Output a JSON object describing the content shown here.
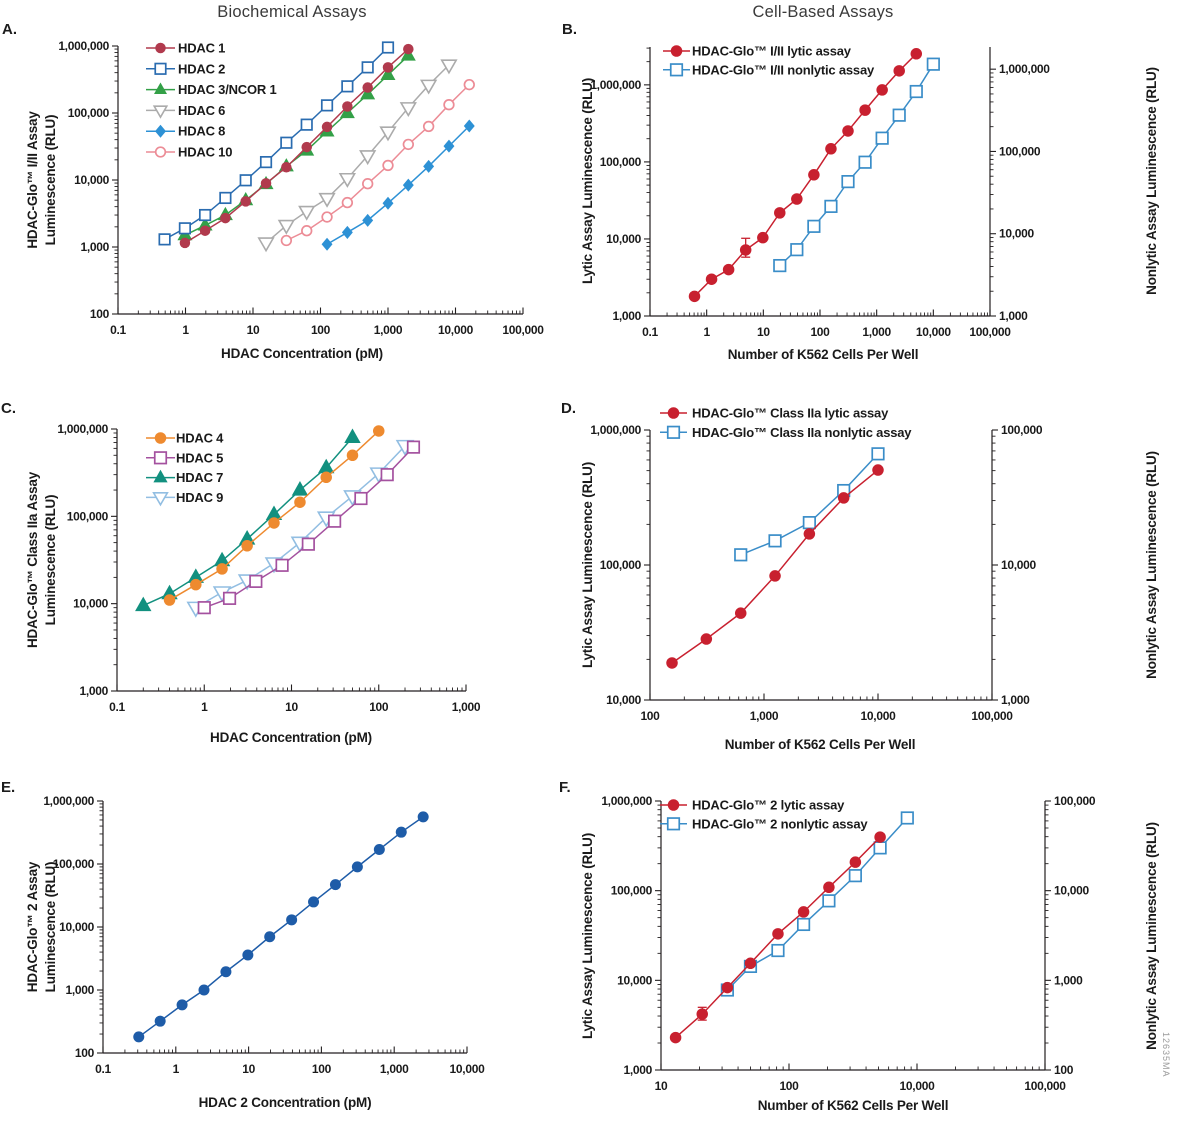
{
  "page": {
    "column_titles": [
      {
        "text": "Biochemical Assays"
      },
      {
        "text": "Cell-Based Assays"
      }
    ],
    "watermark": "12635MA"
  },
  "chart_data": [
    {
      "id": "A",
      "panel_label": "A.",
      "type": "line",
      "x_axis": {
        "scale": "log",
        "min": 0.1,
        "tick_labels": [
          "0.1",
          "1",
          "10",
          "100",
          "1,000",
          "10,000",
          "100,000"
        ],
        "title": "HDAC Concentration (pM)"
      },
      "y_left": {
        "scale": "log",
        "min": 100,
        "tick_labels": [
          "100",
          "1,000",
          "10,000",
          "100,000",
          "1,000,000"
        ],
        "axis_max": 1000000,
        "title": "HDAC-Glo™ I/II Assay\nLuminescence (RLU)"
      },
      "series": [
        {
          "name": "HDAC 1",
          "marker": "circle-filled",
          "color": "#b13a4d",
          "axis": "left",
          "x": [
            0.98,
            1.95,
            3.9,
            7.8,
            15.6,
            31.2,
            62.5,
            125,
            250,
            500,
            1000,
            2000
          ],
          "y": [
            1150,
            1750,
            2700,
            4800,
            8900,
            15500,
            31000,
            62000,
            125000,
            240000,
            480000,
            900000
          ]
        },
        {
          "name": "HDAC 2",
          "marker": "square-open",
          "color": "#2a6cb0",
          "axis": "left",
          "x": [
            0.49,
            0.98,
            1.95,
            3.9,
            7.8,
            15.6,
            31.2,
            62.5,
            125,
            250,
            500,
            1000
          ],
          "y": [
            1300,
            1900,
            3000,
            5400,
            9900,
            18500,
            36000,
            67000,
            130000,
            250000,
            480000,
            950000
          ]
        },
        {
          "name": "HDAC 3/NCOR 1",
          "marker": "triangle-up-filled",
          "color": "#33a047",
          "axis": "left",
          "x": [
            0.98,
            1.95,
            3.9,
            7.8,
            15.6,
            31.2,
            62.5,
            125,
            250,
            500,
            1000,
            2000
          ],
          "y": [
            1500,
            2100,
            3000,
            5000,
            8700,
            16000,
            27500,
            53000,
            100000,
            190000,
            370000,
            720000
          ]
        },
        {
          "name": "HDAC 6",
          "marker": "triangle-down-open",
          "color": "#ababab",
          "axis": "left",
          "x": [
            15.6,
            31.2,
            62.5,
            125,
            250,
            500,
            1000,
            2000,
            4000,
            8000
          ],
          "y": [
            1150,
            2100,
            3400,
            5300,
            10500,
            23000,
            52000,
            120000,
            260000,
            520000
          ]
        },
        {
          "name": "HDAC 8",
          "marker": "diamond-filled",
          "color": "#2d91d5",
          "axis": "left",
          "x": [
            125,
            250,
            500,
            1000,
            2000,
            4000,
            8000,
            16000
          ],
          "y": [
            1100,
            1650,
            2500,
            4500,
            8400,
            16000,
            32000,
            64000
          ]
        },
        {
          "name": "HDAC 10",
          "marker": "circle-open",
          "color": "#ec8c96",
          "axis": "left",
          "x": [
            31.2,
            62.5,
            125,
            250,
            500,
            1000,
            2000,
            4000,
            8000,
            16000
          ],
          "y": [
            1250,
            1750,
            2800,
            4600,
            8800,
            16500,
            34000,
            63000,
            133000,
            265000
          ]
        }
      ]
    },
    {
      "id": "B",
      "panel_label": "B.",
      "type": "line",
      "x_axis": {
        "scale": "log",
        "min": 0.1,
        "tick_labels": [
          "0.1",
          "1",
          "10",
          "100",
          "1,000",
          "10,000",
          "100,000"
        ],
        "title": "Number of K562 Cells Per Well"
      },
      "y_left": {
        "scale": "log",
        "min": 1000,
        "tick_labels": [
          "1,000",
          "10,000",
          "100,000",
          "1,000,000"
        ],
        "axis_max": 3100000,
        "title": "Lytic Assay Luminescence (RLU)"
      },
      "y_right": {
        "scale": "log",
        "min": 1000,
        "tick_labels": [
          "1,000",
          "10,000",
          "100,000",
          "1,000,000"
        ],
        "axis_max": 1860000,
        "title": "Nonlytic Assay Luminescence (RLU)"
      },
      "series": [
        {
          "name": "HDAC-Glo™ I/II lytic assay",
          "marker": "circle-filled",
          "color": "#c8202f",
          "axis": "left",
          "x": [
            0.61,
            1.22,
            2.44,
            4.88,
            9.8,
            19.5,
            39,
            78,
            156,
            312,
            625,
            1250,
            2500,
            5000
          ],
          "y": [
            1800,
            3000,
            4000,
            7200,
            10400,
            21800,
            33000,
            68000,
            148000,
            252000,
            470000,
            860000,
            1520000,
            2530000
          ],
          "errors": [
            {
              "i": 3,
              "lo": 5800,
              "hi": 10200
            }
          ]
        },
        {
          "name": "HDAC-Glo™ I/II nonlytic assay",
          "marker": "square-open",
          "color": "#3a8dc8",
          "axis": "right",
          "x": [
            19.5,
            39,
            78,
            156,
            312,
            625,
            1250,
            2500,
            5000,
            10000
          ],
          "y": [
            4100,
            6400,
            12300,
            21500,
            43000,
            74000,
            145000,
            276000,
            535000,
            1150000
          ]
        }
      ]
    },
    {
      "id": "C",
      "panel_label": "C.",
      "type": "line",
      "x_axis": {
        "scale": "log",
        "min": 0.1,
        "tick_labels": [
          "0.1",
          "1",
          "10",
          "100",
          "1,000"
        ],
        "title": "HDAC Concentration (pM)"
      },
      "y_left": {
        "scale": "log",
        "min": 1000,
        "tick_labels": [
          "1,000",
          "10,000",
          "100,000",
          "1,000,000"
        ],
        "axis_max": 1000000,
        "title": "HDAC-Glo™ Class IIa Assay\nLuminescence (RLU)"
      },
      "series": [
        {
          "name": "HDAC 4",
          "marker": "circle-filled",
          "color": "#ee8a2f",
          "axis": "left",
          "x": [
            0.4,
            0.8,
            1.6,
            3.1,
            6.3,
            12.5,
            25,
            50,
            100
          ],
          "y": [
            11000,
            16500,
            25000,
            46000,
            84000,
            145000,
            280000,
            500000,
            950000
          ]
        },
        {
          "name": "HDAC 5",
          "marker": "square-open",
          "color": "#a4519f",
          "axis": "left",
          "x": [
            1,
            1.95,
            3.9,
            7.8,
            15.6,
            31.2,
            62.5,
            125,
            250
          ],
          "y": [
            9000,
            11500,
            18000,
            27500,
            48000,
            88000,
            160000,
            300000,
            620000
          ]
        },
        {
          "name": "HDAC 7",
          "marker": "triangle-up-filled",
          "color": "#12907f",
          "axis": "left",
          "x": [
            0.2,
            0.4,
            0.8,
            1.6,
            3.1,
            6.3,
            12.5,
            25,
            50
          ],
          "y": [
            9500,
            13000,
            20000,
            31000,
            55000,
            105000,
            200000,
            360000,
            800000
          ]
        },
        {
          "name": "HDAC 9",
          "marker": "triangle-down-open",
          "color": "#92bee2",
          "axis": "left",
          "x": [
            0.8,
            1.6,
            3.1,
            6.3,
            12.5,
            25,
            50,
            100,
            200
          ],
          "y": [
            9000,
            13500,
            18500,
            29000,
            50000,
            97000,
            170000,
            310000,
            640000
          ]
        }
      ]
    },
    {
      "id": "D",
      "panel_label": "D.",
      "type": "line",
      "x_axis": {
        "scale": "log",
        "min": 100,
        "tick_labels": [
          "100",
          "1,000",
          "10,000",
          "100,000"
        ],
        "title": "Number of K562 Cells Per Well"
      },
      "y_left": {
        "scale": "log",
        "min": 10000,
        "tick_labels": [
          "10,000",
          "100,000",
          "1,000,000"
        ],
        "axis_max": 1000000,
        "title": "Lytic Assay Luminescence (RLU)"
      },
      "y_right": {
        "scale": "log",
        "min": 1000,
        "tick_labels": [
          "1,000",
          "10,000",
          "100,000"
        ],
        "axis_max": 100000,
        "title": "Nonlytic Assay Luminescence (RLU)"
      },
      "series": [
        {
          "name": "HDAC-Glo™ Class IIa lytic assay",
          "marker": "circle-filled",
          "color": "#c8202f",
          "axis": "left",
          "x": [
            156,
            312,
            625,
            1250,
            2500,
            5000,
            10000
          ],
          "y": [
            18800,
            28300,
            44000,
            83000,
            170000,
            314000,
            505000
          ]
        },
        {
          "name": "HDAC-Glo™ Class IIa nonlytic assay",
          "marker": "square-open",
          "color": "#3a8dc8",
          "axis": "right",
          "x": [
            625,
            1250,
            2500,
            5000,
            10000
          ],
          "y": [
            11900,
            15100,
            20600,
            35600,
            66600
          ]
        }
      ]
    },
    {
      "id": "E",
      "panel_label": "E.",
      "type": "line",
      "x_axis": {
        "scale": "log",
        "min": 0.1,
        "tick_labels": [
          "0.1",
          "1",
          "10",
          "100",
          "1,000",
          "10,000"
        ],
        "title": "HDAC 2 Concentration (pM)"
      },
      "y_left": {
        "scale": "log",
        "min": 100,
        "tick_labels": [
          "100",
          "1,000",
          "10,000",
          "100,000",
          "1,000,000"
        ],
        "axis_max": 1000000,
        "title": "HDAC-Glo™ 2 Assay\nLuminescence (RLU)"
      },
      "series": [
        {
          "name": "HDAC 2",
          "marker": "circle-filled",
          "color": "#1e5ca8",
          "axis": "left",
          "no_legend": true,
          "x": [
            0.31,
            0.61,
            1.22,
            2.44,
            4.88,
            9.77,
            19.5,
            39,
            78,
            156,
            312,
            625,
            1250,
            2500
          ],
          "y": [
            180,
            320,
            580,
            1000,
            1950,
            3600,
            7000,
            13000,
            25000,
            47000,
            90000,
            170000,
            320000,
            560000
          ]
        }
      ]
    },
    {
      "id": "F",
      "panel_label": "F.",
      "type": "line",
      "x_axis": {
        "scale": "log",
        "min": 10,
        "tick_labels": [
          "10",
          "100",
          "10,000",
          "100,000"
        ],
        "title": "Number of K562 Cells Per Well"
      },
      "y_left": {
        "scale": "log",
        "min": 1000,
        "tick_labels": [
          "1,000",
          "10,000",
          "100,000",
          "1,000,000"
        ],
        "axis_max": 1000000,
        "title": "Lytic Assay Luminescence (RLU)"
      },
      "y_right": {
        "scale": "log",
        "min": 100,
        "tick_labels": [
          "100",
          "1,000",
          "10,000",
          "100,000"
        ],
        "axis_max": 100000,
        "title": "Nonlytic Assay Luminescence (RLU)"
      },
      "series": [
        {
          "name": "HDAC-Glo™ 2 lytic assay",
          "marker": "circle-filled",
          "color": "#c8202f",
          "axis": "left",
          "x": [
            13,
            21,
            33,
            50,
            82,
            130,
            205,
            330,
            515
          ],
          "y": [
            2300,
            4200,
            8300,
            15500,
            33000,
            58000,
            109000,
            208000,
            396000
          ],
          "errors": [
            {
              "i": 1,
              "lo": 3600,
              "hi": 5000
            }
          ]
        },
        {
          "name": "HDAC-Glo™ 2 nonlytic assay",
          "marker": "square-open",
          "color": "#3a8dc8",
          "axis": "right",
          "x": [
            33,
            50,
            82,
            130,
            205,
            330,
            515,
            840
          ],
          "y": [
            780,
            1430,
            2150,
            4200,
            7700,
            14700,
            30000,
            64700
          ]
        }
      ]
    }
  ]
}
